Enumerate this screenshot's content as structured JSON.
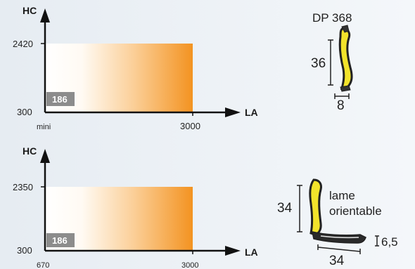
{
  "charts": [
    {
      "y_axis_label": "HC",
      "x_axis_label": "LA",
      "y_max_label": "2420",
      "y_min_label": "300",
      "x_min_label": "mini",
      "x_max_label": "3000",
      "badge": "186"
    },
    {
      "y_axis_label": "HC",
      "x_axis_label": "LA",
      "y_max_label": "2350",
      "y_min_label": "300",
      "x_min_label": "670",
      "x_max_label": "3000",
      "badge": "186"
    }
  ],
  "profile_top": {
    "title": "DP 368",
    "height_dim": "36",
    "width_dim": "8"
  },
  "profile_bottom": {
    "label_line1": "lame",
    "label_line2": "orientable",
    "height_dim": "34",
    "depth_dim": "6,5",
    "width_dim": "34"
  },
  "colors": {
    "gradient_start": "#ffffff",
    "gradient_end": "#f39321",
    "badge": "#8c8c8c",
    "profile_yellow": "#f2e32b",
    "profile_dark": "#2a2a2a"
  }
}
